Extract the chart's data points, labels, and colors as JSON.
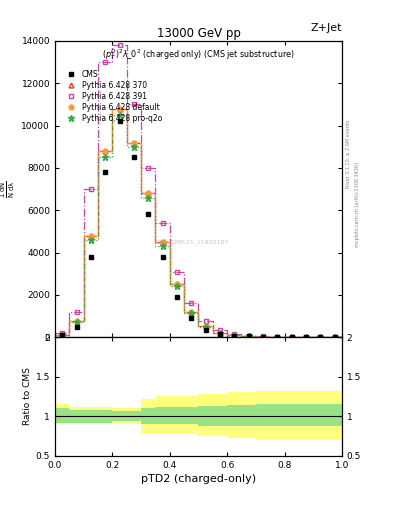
{
  "title_center": "13000 GeV pp",
  "title_right": "Z+Jet",
  "subtitle": "$(p_T^D)^2\\lambda\\_0^2$ (charged only) (CMS jet substructure)",
  "xlabel": "pTD2 (charged-only)",
  "ylabel_ratio": "Ratio to CMS",
  "right_label_top": "Rivet 3.1.10, ≥ 2.6M events",
  "right_label_bottom": "mcplots.cern.ch [arXiv:1306.3436]",
  "watermark": "CMS-SMP-21_11920187",
  "xbins": [
    0.0,
    0.05,
    0.1,
    0.15,
    0.2,
    0.25,
    0.3,
    0.35,
    0.4,
    0.45,
    0.5,
    0.55,
    0.6,
    0.65,
    0.7,
    0.75,
    0.8,
    0.85,
    0.9,
    0.95,
    1.0
  ],
  "cms_y": [
    80,
    500,
    3800,
    7800,
    10200,
    8500,
    5800,
    3800,
    1900,
    900,
    350,
    150,
    70,
    35,
    20,
    12,
    8,
    5,
    3,
    2
  ],
  "py370_y": [
    120,
    750,
    4800,
    8800,
    10800,
    9200,
    6800,
    4500,
    2500,
    1200,
    520,
    210,
    95,
    50,
    28,
    16,
    10,
    6,
    4,
    2
  ],
  "py391_y": [
    180,
    1200,
    7000,
    13000,
    13800,
    11000,
    8000,
    5400,
    3100,
    1600,
    750,
    330,
    155,
    75,
    42,
    24,
    15,
    9,
    5,
    3
  ],
  "pydefault_y": [
    120,
    750,
    4800,
    8800,
    10800,
    9200,
    6800,
    4500,
    2500,
    1200,
    520,
    210,
    95,
    50,
    28,
    16,
    10,
    6,
    4,
    2
  ],
  "pyproq2o_y": [
    120,
    700,
    4600,
    8500,
    10500,
    9000,
    6600,
    4300,
    2400,
    1150,
    500,
    200,
    90,
    48,
    26,
    15,
    9,
    5,
    3,
    2
  ],
  "ratio_yellow_upper": [
    1.15,
    1.12,
    1.12,
    1.12,
    1.1,
    1.1,
    1.22,
    1.25,
    1.25,
    1.25,
    1.28,
    1.28,
    1.3,
    1.3,
    1.32,
    1.32,
    1.32,
    1.32,
    1.32,
    1.32
  ],
  "ratio_yellow_lower": [
    0.9,
    0.9,
    0.9,
    0.9,
    0.9,
    0.9,
    0.78,
    0.78,
    0.78,
    0.78,
    0.75,
    0.75,
    0.73,
    0.73,
    0.7,
    0.7,
    0.7,
    0.7,
    0.7,
    0.7
  ],
  "ratio_green_upper": [
    1.1,
    1.08,
    1.08,
    1.08,
    1.06,
    1.06,
    1.1,
    1.12,
    1.12,
    1.12,
    1.13,
    1.13,
    1.14,
    1.14,
    1.16,
    1.16,
    1.16,
    1.16,
    1.16,
    1.16
  ],
  "ratio_green_lower": [
    0.92,
    0.92,
    0.92,
    0.92,
    0.94,
    0.94,
    0.9,
    0.9,
    0.9,
    0.9,
    0.88,
    0.88,
    0.87,
    0.87,
    0.87,
    0.87,
    0.87,
    0.87,
    0.87,
    0.87
  ],
  "ylim_main": [
    0,
    14000
  ],
  "yticks_main": [
    0,
    2000,
    4000,
    6000,
    8000,
    10000,
    12000,
    14000
  ],
  "ylim_ratio": [
    0.5,
    2.0
  ],
  "yticks_ratio": [
    0.5,
    1.0,
    1.5,
    2.0
  ],
  "background_color": "#ffffff"
}
